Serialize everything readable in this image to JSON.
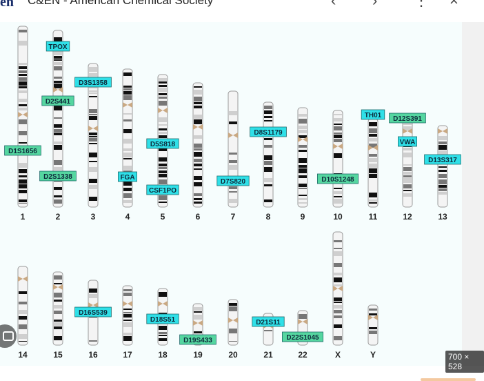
{
  "header": {
    "logo": "en",
    "source": "C&EN - American Chemical Society",
    "prev_icon": "chevron-left-icon",
    "next_icon": "chevron-right-icon",
    "more_icon": "more-vert-icon",
    "close_icon": "close-icon"
  },
  "image_size_badge": "700 × 528",
  "lens_icon": "camera-lens-icon",
  "colors": {
    "cyan_label": "#2fe0e8",
    "green_label": "#55d6a0",
    "band_dark": "#111111",
    "band_mid": "#777777",
    "band_light": "#cfcfcf"
  },
  "chromosomes": [
    {
      "name": "1",
      "markers": [
        {
          "label": "D1S1656",
          "color": "green"
        }
      ]
    },
    {
      "name": "2",
      "markers": [
        {
          "label": "TPOX",
          "color": "cyan"
        },
        {
          "label": "D2S441",
          "color": "green"
        },
        {
          "label": "D2S1338",
          "color": "green"
        }
      ]
    },
    {
      "name": "3",
      "markers": [
        {
          "label": "D3S1358",
          "color": "cyan"
        }
      ]
    },
    {
      "name": "4",
      "markers": [
        {
          "label": "FGA",
          "color": "cyan"
        }
      ]
    },
    {
      "name": "5",
      "markers": [
        {
          "label": "D5S818",
          "color": "cyan"
        },
        {
          "label": "CSF1PO",
          "color": "cyan"
        }
      ]
    },
    {
      "name": "6",
      "markers": []
    },
    {
      "name": "7",
      "markers": [
        {
          "label": "D7S820",
          "color": "cyan"
        }
      ]
    },
    {
      "name": "8",
      "markers": [
        {
          "label": "D8S1179",
          "color": "cyan"
        }
      ]
    },
    {
      "name": "9",
      "markers": []
    },
    {
      "name": "10",
      "markers": [
        {
          "label": "D10S1248",
          "color": "green"
        }
      ]
    },
    {
      "name": "11",
      "markers": [
        {
          "label": "TH01",
          "color": "cyan"
        }
      ]
    },
    {
      "name": "12",
      "markers": [
        {
          "label": "D12S391",
          "color": "green"
        },
        {
          "label": "VWA",
          "color": "cyan"
        }
      ]
    },
    {
      "name": "13",
      "markers": [
        {
          "label": "D13S317",
          "color": "cyan"
        }
      ]
    },
    {
      "name": "14",
      "markers": []
    },
    {
      "name": "15",
      "markers": []
    },
    {
      "name": "16",
      "markers": [
        {
          "label": "D16S539",
          "color": "cyan"
        }
      ]
    },
    {
      "name": "17",
      "markers": []
    },
    {
      "name": "18",
      "markers": [
        {
          "label": "D18S51",
          "color": "cyan"
        }
      ]
    },
    {
      "name": "19",
      "markers": [
        {
          "label": "D19S433",
          "color": "green"
        }
      ]
    },
    {
      "name": "20",
      "markers": []
    },
    {
      "name": "21",
      "markers": [
        {
          "label": "D21S11",
          "color": "cyan"
        }
      ]
    },
    {
      "name": "22",
      "markers": [
        {
          "label": "D22S1045",
          "color": "green"
        }
      ]
    },
    {
      "name": "X",
      "markers": []
    },
    {
      "name": "Y",
      "markers": []
    }
  ]
}
